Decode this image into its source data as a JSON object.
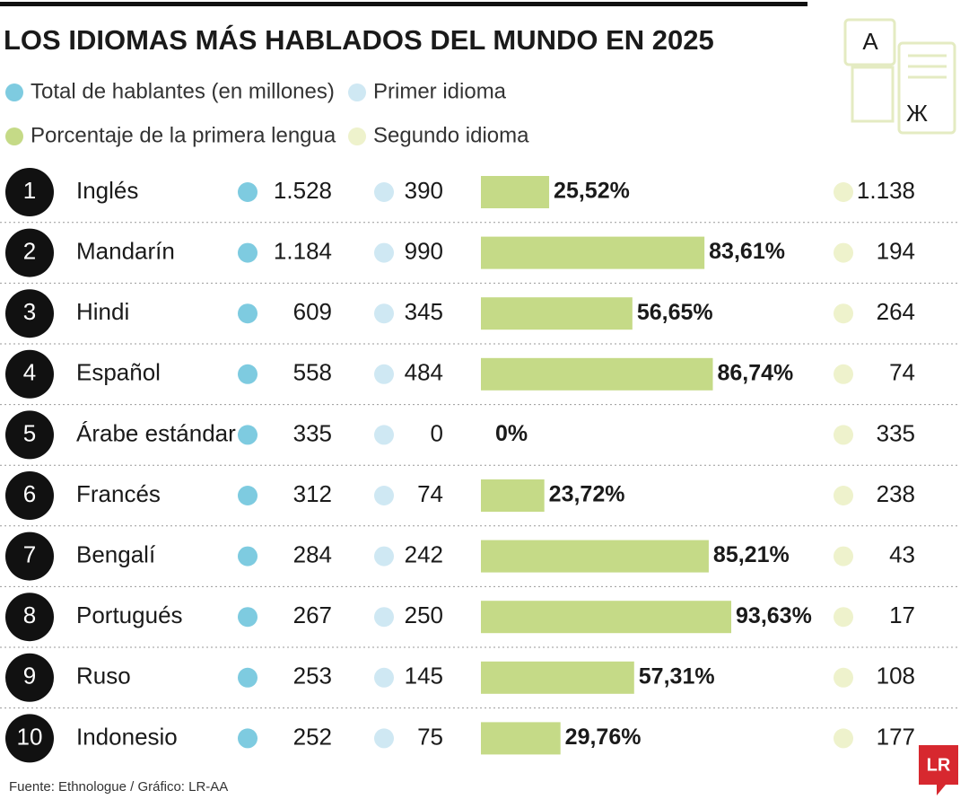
{
  "chart_data": {
    "type": "bar",
    "title": "LOS IDIOMAS MÁS HABLADOS DEL MUNDO EN 2025",
    "ranks": [
      "1",
      "2",
      "3",
      "4",
      "5",
      "6",
      "7",
      "8",
      "9",
      "10"
    ],
    "categories": [
      "Inglés",
      "Mandarín",
      "Hindi",
      "Español",
      "Árabe estándar",
      "Francés",
      "Bengalí",
      "Portugués",
      "Ruso",
      "Indonesio"
    ],
    "series": [
      {
        "name": "Total de hablantes (en millones)",
        "color": "#7ecbe0",
        "values": [
          1528,
          1184,
          609,
          558,
          335,
          312,
          284,
          267,
          253,
          252
        ],
        "value_labels": [
          "1.528",
          "1.184",
          "609",
          "558",
          "335",
          "312",
          "284",
          "267",
          "253",
          "252"
        ]
      },
      {
        "name": "Primer idioma",
        "color": "#cfe8f3",
        "values": [
          390,
          990,
          345,
          484,
          0,
          74,
          242,
          250,
          145,
          75
        ]
      },
      {
        "name": "Porcentaje de la primera lengua",
        "color": "#c5da87",
        "values": [
          25.52,
          83.61,
          56.65,
          86.74,
          0,
          23.72,
          85.21,
          93.63,
          57.31,
          29.76
        ],
        "value_labels": [
          "25,52%",
          "83,61%",
          "56,65%",
          "86,74%",
          "0%",
          "23,72%",
          "85,21%",
          "93,63%",
          "57,31%",
          "29,76%"
        ]
      },
      {
        "name": "Segundo idioma",
        "color": "#eef2cc",
        "values": [
          1138,
          194,
          264,
          74,
          335,
          238,
          43,
          17,
          108,
          177
        ],
        "value_labels": [
          "1.138",
          "194",
          "264",
          "74",
          "335",
          "238",
          "43",
          "17",
          "108",
          "177"
        ]
      }
    ],
    "source": "Fuente: Ethnologue / Gráfico: LR-AA",
    "logo": "LR"
  }
}
